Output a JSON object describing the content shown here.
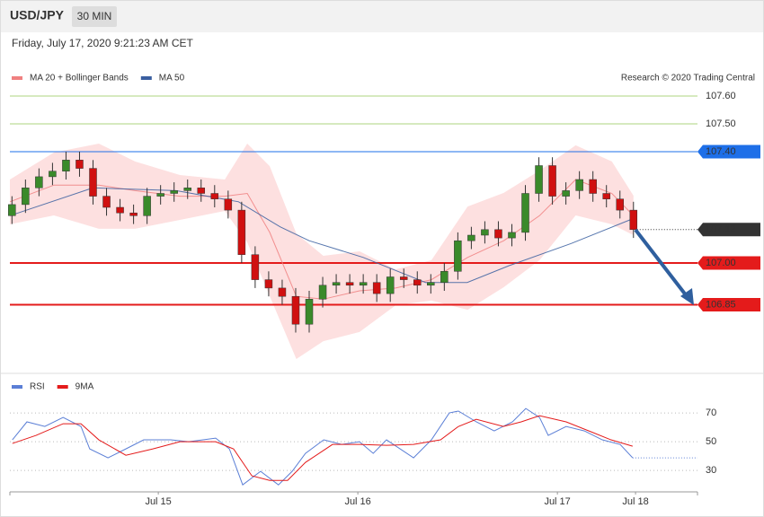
{
  "header": {
    "symbol": "USD/JPY",
    "interval": "30 MIN",
    "timestamp": "Friday, July 17, 2020 9:21:23 AM CET",
    "credit": "Research © 2020 Trading Central"
  },
  "chart_data": [
    {
      "type": "candlestick",
      "up_color": "#3a8a2a",
      "down_color": "#d01010",
      "xlim": [
        0,
        165.4
      ],
      "ylim": [
        106.61,
        107.75
      ],
      "x": [
        0.5,
        3.75,
        7,
        10.25,
        13.5,
        16.75,
        20,
        23.25,
        26.5,
        29.75,
        33,
        36.25,
        39.5,
        42.75,
        46,
        49.25,
        52.5,
        55.75,
        59,
        62.25,
        65.5,
        68.75,
        72,
        75.25,
        78.5,
        81.75,
        85,
        88.25,
        91.5,
        94.75,
        98,
        101.25,
        104.5,
        107.75,
        111,
        114.25,
        117.5,
        120.75,
        124,
        127.25,
        130.5,
        133.75,
        137,
        140.25,
        143.5,
        146.75,
        150
      ],
      "open": [
        107.17,
        107.21,
        107.27,
        107.31,
        107.33,
        107.37,
        107.34,
        107.24,
        107.2,
        107.18,
        107.17,
        107.24,
        107.25,
        107.26,
        107.27,
        107.25,
        107.23,
        107.19,
        107.03,
        106.94,
        106.91,
        106.88,
        106.78,
        106.87,
        106.92,
        106.93,
        106.92,
        106.93,
        106.89,
        106.95,
        106.94,
        106.92,
        106.93,
        106.97,
        107.08,
        107.1,
        107.12,
        107.09,
        107.11,
        107.25,
        107.35,
        107.24,
        107.26,
        107.3,
        107.25,
        107.23,
        107.19
      ],
      "high": [
        107.24,
        107.3,
        107.34,
        107.36,
        107.4,
        107.4,
        107.37,
        107.27,
        107.23,
        107.21,
        107.27,
        107.28,
        107.29,
        107.3,
        107.3,
        107.28,
        107.26,
        107.22,
        107.06,
        106.97,
        106.94,
        106.91,
        106.9,
        106.95,
        106.96,
        106.96,
        106.96,
        106.96,
        106.98,
        106.98,
        106.97,
        106.96,
        107.0,
        107.11,
        107.13,
        107.15,
        107.15,
        107.14,
        107.28,
        107.38,
        107.38,
        107.29,
        107.33,
        107.33,
        107.28,
        107.26,
        107.22
      ],
      "low": [
        107.14,
        107.18,
        107.24,
        107.28,
        107.3,
        107.31,
        107.21,
        107.17,
        107.15,
        107.14,
        107.14,
        107.21,
        107.22,
        107.23,
        107.22,
        107.2,
        107.16,
        107.0,
        106.91,
        106.88,
        106.85,
        106.75,
        106.75,
        106.84,
        106.89,
        106.89,
        106.89,
        106.86,
        106.86,
        106.91,
        106.89,
        106.89,
        106.9,
        106.94,
        107.05,
        107.07,
        107.06,
        107.06,
        107.08,
        107.22,
        107.21,
        107.21,
        107.23,
        107.22,
        107.2,
        107.16,
        107.09
      ],
      "close": [
        107.21,
        107.27,
        107.31,
        107.33,
        107.37,
        107.34,
        107.24,
        107.2,
        107.18,
        107.17,
        107.24,
        107.25,
        107.26,
        107.27,
        107.25,
        107.23,
        107.19,
        107.03,
        106.94,
        106.91,
        106.88,
        106.78,
        106.87,
        106.92,
        106.93,
        106.92,
        106.93,
        106.89,
        106.95,
        106.94,
        106.92,
        106.93,
        106.97,
        107.08,
        107.1,
        107.12,
        107.09,
        107.11,
        107.25,
        107.35,
        107.24,
        107.26,
        107.3,
        107.25,
        107.23,
        107.19,
        107.12
      ],
      "series": [
        {
          "name": "MA 20 + Bollinger Bands",
          "color": "#f08080",
          "band_color": "#fde0e0",
          "x": [
            0,
            10.6,
            21.4,
            30.1,
            40.9,
            51.7,
            57.1,
            62.5,
            68.9,
            75.4,
            84.1,
            92.8,
            101.4,
            110.1,
            118.8,
            127.4,
            136.1,
            144.8,
            150
          ],
          "values": [
            107.22,
            107.28,
            107.28,
            107.26,
            107.24,
            107.24,
            107.25,
            107.11,
            106.88,
            106.87,
            106.9,
            106.91,
            106.94,
            107.02,
            107.08,
            107.17,
            107.3,
            107.25,
            107.17
          ],
          "upper": [
            107.3,
            107.397,
            107.429,
            107.365,
            107.316,
            107.3,
            107.429,
            107.348,
            107.106,
            107.026,
            107.042,
            106.977,
            107.01,
            107.203,
            107.252,
            107.332,
            107.423,
            107.365,
            107.242
          ],
          "lower": [
            107.139,
            107.171,
            107.123,
            107.123,
            107.155,
            107.187,
            107.074,
            106.881,
            106.655,
            106.719,
            106.752,
            106.848,
            106.865,
            106.832,
            106.913,
            107.01,
            107.171,
            107.139,
            107.1
          ]
        },
        {
          "name": "MA 50",
          "color": "#3a5fa0",
          "x": [
            0,
            20,
            40,
            55,
            65,
            72,
            85,
            100,
            110,
            120,
            135,
            150
          ],
          "values": [
            107.17,
            107.27,
            107.26,
            107.22,
            107.13,
            107.08,
            107.02,
            106.93,
            106.93,
            106.99,
            107.07,
            107.16
          ]
        }
      ],
      "levels": [
        {
          "value": 107.6,
          "label": "107.60",
          "color": "#8bc34a",
          "style": "text",
          "line": "solid"
        },
        {
          "value": 107.5,
          "label": "107.50",
          "color": "#8bc34a",
          "style": "text",
          "line": "solid"
        },
        {
          "value": 107.4,
          "label": "107.40",
          "color": "#1e6fe8",
          "style": "box",
          "line": "solid"
        },
        {
          "value": 107.12,
          "label": "107.12",
          "color": "#333333",
          "style": "box",
          "line": "dotted"
        },
        {
          "value": 107.0,
          "label": "107.00",
          "color": "#e41b1b",
          "style": "box",
          "line": "bold"
        },
        {
          "value": 106.85,
          "label": "106.85",
          "color": "#e41b1b",
          "style": "box",
          "line": "bold"
        }
      ]
    },
    {
      "type": "line",
      "xlim": [
        0,
        165.4
      ],
      "ylim": [
        17,
        95
      ],
      "yticks": [
        30,
        50,
        70
      ],
      "grid": true,
      "xticks": [
        {
          "value": 35.7,
          "label": "Jul 15"
        },
        {
          "value": 83.7,
          "label": "Jul 16"
        },
        {
          "value": 131.7,
          "label": "Jul 17"
        },
        {
          "value": 150.5,
          "label": "Jul 18"
        }
      ],
      "series": [
        {
          "name": "RSI",
          "color": "#5b7fd6",
          "x": [
            0.6,
            4.1,
            8.4,
            12.8,
            17.1,
            19.2,
            23.6,
            27.9,
            32.2,
            38.7,
            43.0,
            49.5,
            52.8,
            56.0,
            60.3,
            64.6,
            67.9,
            71.1,
            75.5,
            79.8,
            84.1,
            87.4,
            90.6,
            97.1,
            101.4,
            105.7,
            107.9,
            112.2,
            116.5,
            120.9,
            124.1,
            127.4,
            129.5,
            133.8,
            138.2,
            142.5,
            146.8,
            149.8
          ],
          "values": [
            51.3,
            63.8,
            60.6,
            66.9,
            60.6,
            45,
            38.8,
            45,
            51.3,
            51.3,
            50,
            52.5,
            45,
            20,
            29.4,
            20,
            29.4,
            41.9,
            51.3,
            48.1,
            50,
            41.9,
            51.3,
            38.8,
            51.3,
            70,
            71.3,
            63.8,
            57.5,
            63.8,
            73.1,
            66.9,
            54.4,
            60.6,
            57.5,
            51.3,
            48.1,
            38.8
          ]
        },
        {
          "name": "9MA",
          "color": "#e41b1b",
          "x": [
            0.6,
            6.3,
            12.8,
            17.1,
            21.4,
            27.9,
            34.4,
            40.9,
            49.5,
            53.8,
            58.2,
            62.5,
            66.8,
            71.1,
            77.6,
            84.1,
            90.6,
            97.1,
            103.6,
            107.9,
            112.2,
            118.7,
            123.0,
            127.4,
            133.8,
            140.3,
            144.6,
            149.8
          ],
          "values": [
            48.8,
            54.4,
            62.5,
            62.5,
            51.3,
            40.6,
            45,
            50,
            50,
            45,
            26.3,
            23.1,
            23.1,
            35.6,
            48.1,
            48.1,
            47.5,
            48.1,
            51.3,
            60.6,
            65.6,
            60.6,
            63.8,
            68.1,
            63.8,
            56.3,
            51.3,
            46.9
          ]
        }
      ]
    }
  ]
}
